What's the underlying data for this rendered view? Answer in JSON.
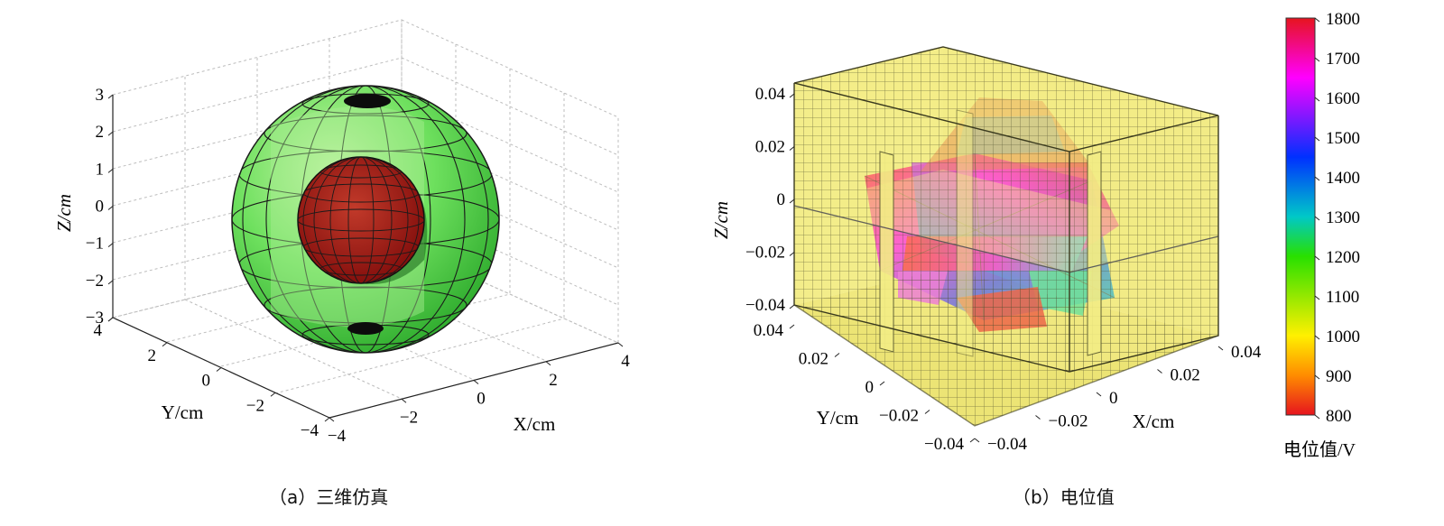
{
  "panel_a": {
    "caption": "（a）三维仿真",
    "x_axis_label": "X/cm",
    "y_axis_label": "Y/cm",
    "z_axis_label": "Z/cm",
    "x_ticks": [
      "−4",
      "−2",
      "0",
      "2",
      "4"
    ],
    "y_ticks": [
      "−4",
      "−2",
      "0",
      "2",
      "4"
    ],
    "z_ticks": [
      "−3",
      "−2",
      "−1",
      "0",
      "1",
      "2",
      "3"
    ],
    "colors": {
      "outer_sphere": "#3fd63f",
      "inner_sphere": "#a01010",
      "mesh": "#1a1a1a",
      "grid": "#bdbdbd"
    }
  },
  "panel_b": {
    "caption": "（b）电位值",
    "x_axis_label": "X/cm",
    "y_axis_label": "Y/cm",
    "z_axis_label": "Z/cm",
    "x_ticks": [
      "−0.04",
      "−0.02",
      "0",
      "0.02",
      "0.04"
    ],
    "y_ticks": [
      "−0.04",
      "−0.02",
      "0",
      "0.02",
      "0.04"
    ],
    "z_ticks": [
      "−0.04",
      "−0.02",
      "0",
      "0.02",
      "0.04"
    ],
    "colors": {
      "cube": "#f3ee86",
      "mesh": "#4a4a2a"
    }
  },
  "colorbar": {
    "label": "电位值/V",
    "ticks": [
      "800",
      "900",
      "1000",
      "1100",
      "1200",
      "1300",
      "1400",
      "1500",
      "1600",
      "1700",
      "1800"
    ],
    "min": 800,
    "max": 1800,
    "colormap": [
      "#e6141e",
      "#ff8c00",
      "#fff000",
      "#28e000",
      "#00c8c8",
      "#0030ff",
      "#ff00ff",
      "#e6141e"
    ]
  }
}
